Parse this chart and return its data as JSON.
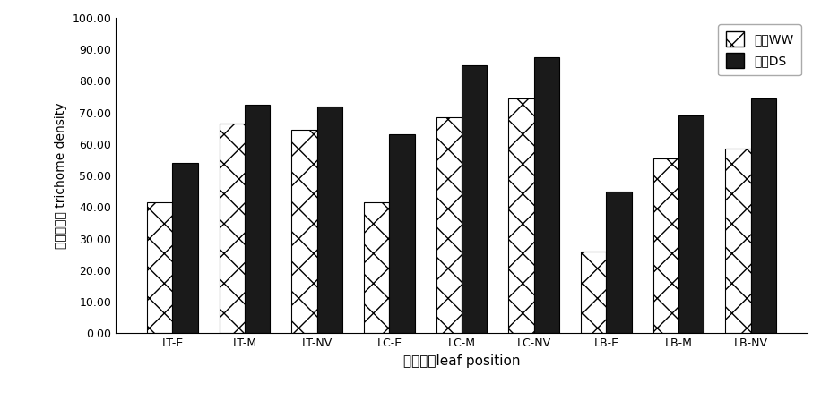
{
  "categories": [
    "LT-E",
    "LT-M",
    "LT-NV",
    "LC-E",
    "LC-M",
    "LC-NV",
    "LB-E",
    "LB-M",
    "LB-NV"
  ],
  "ww_values": [
    41.5,
    66.5,
    64.5,
    41.5,
    68.5,
    74.5,
    26.0,
    55.5,
    58.5
  ],
  "ds_values": [
    54.0,
    72.5,
    72.0,
    63.0,
    85.0,
    87.5,
    45.0,
    69.0,
    74.5
  ],
  "ylabel_cn": "表皮毛密度 trichome density",
  "xlabel": "叶片部位leaf position",
  "ylim": [
    0,
    100
  ],
  "yticks": [
    0.0,
    10.0,
    20.0,
    30.0,
    40.0,
    50.0,
    60.0,
    70.0,
    80.0,
    90.0,
    100.0
  ],
  "legend_ww": "水地WW",
  "legend_ds": "旱地DS",
  "bar_width": 0.35,
  "background_color": "#ffffff",
  "ww_hatch": "x",
  "ds_color": "#1a1a1a",
  "ww_facecolor": "#ffffff",
  "ww_edgecolor": "#000000",
  "ds_edgecolor": "#000000"
}
